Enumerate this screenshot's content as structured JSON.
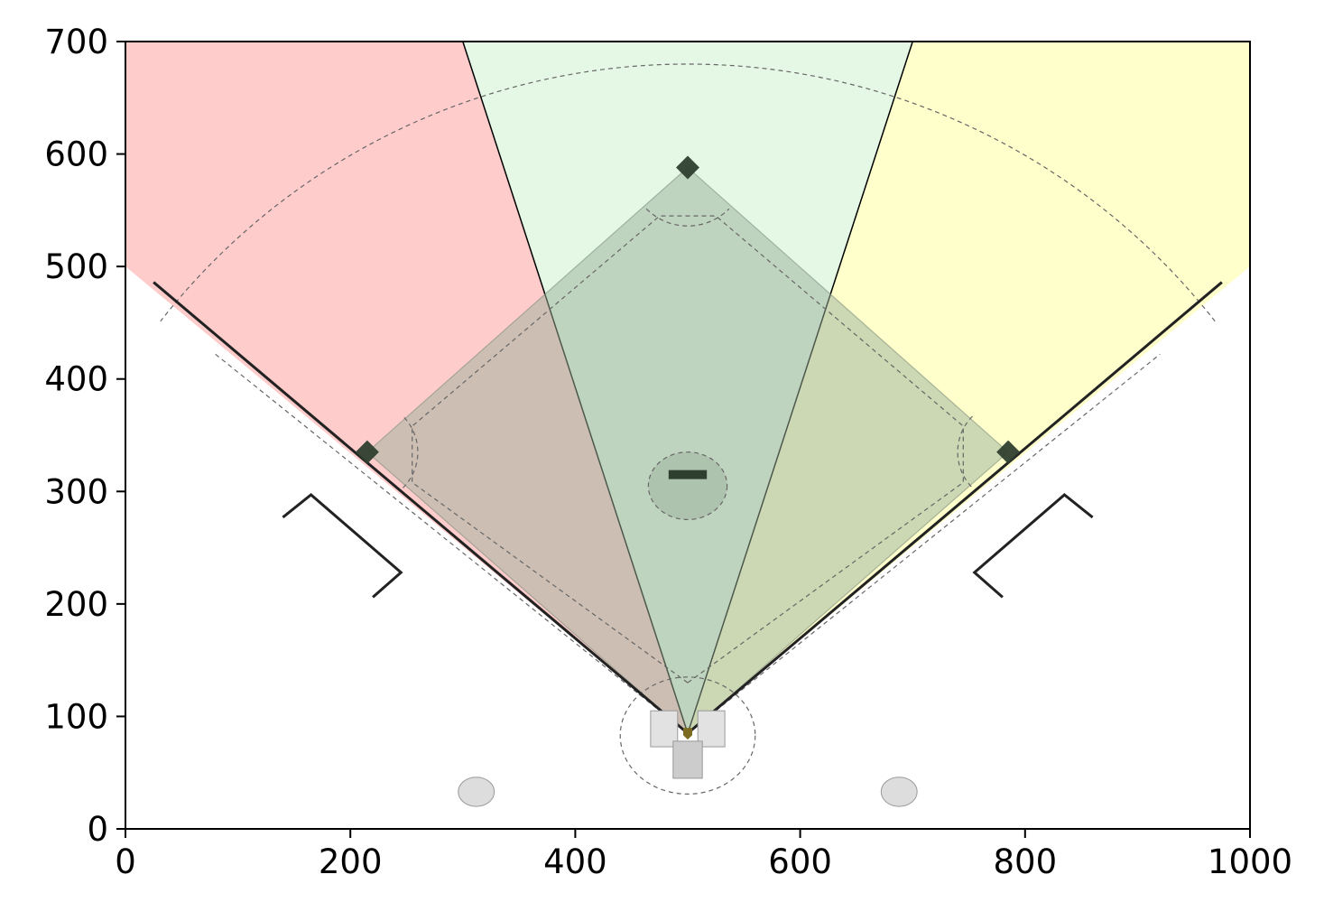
{
  "chart_data": {
    "type": "area",
    "title": "",
    "xlabel": "",
    "ylabel": "",
    "xlim": [
      0,
      1000
    ],
    "ylim": [
      0,
      700
    ],
    "grid": false,
    "x_ticks": [
      {
        "value": 0,
        "label": "0"
      },
      {
        "value": 200,
        "label": "200"
      },
      {
        "value": 400,
        "label": "400"
      },
      {
        "value": 600,
        "label": "600"
      },
      {
        "value": 800,
        "label": "800"
      },
      {
        "value": 1000,
        "label": "1000"
      }
    ],
    "y_ticks": [
      {
        "value": 0,
        "label": "0"
      },
      {
        "value": 100,
        "label": "100"
      },
      {
        "value": 200,
        "label": "200"
      },
      {
        "value": 300,
        "label": "300"
      },
      {
        "value": 400,
        "label": "400"
      },
      {
        "value": 500,
        "label": "500"
      },
      {
        "value": 600,
        "label": "600"
      },
      {
        "value": 700,
        "label": "700"
      }
    ],
    "zones": [
      {
        "id": "left-field-zone",
        "color": "#ff9999",
        "opacity": 0.5,
        "points": [
          [
            500,
            85
          ],
          [
            0,
            500
          ],
          [
            0,
            700
          ],
          [
            300,
            700
          ]
        ]
      },
      {
        "id": "center-field-zone",
        "color": "#ccf2cc",
        "opacity": 0.5,
        "points": [
          [
            500,
            85
          ],
          [
            300,
            700
          ],
          [
            700,
            700
          ]
        ]
      },
      {
        "id": "right-field-zone",
        "color": "#ffff99",
        "opacity": 0.5,
        "points": [
          [
            500,
            85
          ],
          [
            700,
            700
          ],
          [
            1000,
            700
          ],
          [
            1000,
            500
          ]
        ]
      }
    ],
    "field": {
      "home_plate": [
        500,
        85
      ],
      "infield_diamond": {
        "color": "#99b099",
        "opacity": 0.5,
        "points": [
          [
            500,
            85
          ],
          [
            215,
            335
          ],
          [
            500,
            588
          ],
          [
            785,
            335
          ]
        ]
      },
      "infield_grass_line": [
        [
          500,
          130
        ],
        [
          255,
          308
        ],
        [
          255,
          358
        ],
        [
          475,
          545
        ],
        [
          525,
          545
        ],
        [
          745,
          358
        ],
        [
          745,
          308
        ],
        [
          500,
          130
        ]
      ],
      "bases": [
        {
          "name": "third",
          "x": 215,
          "y": 335
        },
        {
          "name": "second",
          "x": 500,
          "y": 588
        },
        {
          "name": "first",
          "x": 785,
          "y": 335
        }
      ],
      "pitchers_mound": {
        "x": 500,
        "y": 305,
        "rx": 35,
        "ry": 30,
        "rubber": [
          [
            483,
            315
          ],
          [
            517,
            315
          ]
        ]
      },
      "home_circle": {
        "x": 500,
        "y": 83,
        "rx": 60,
        "ry": 52
      },
      "foul_lines": [
        [
          [
            500,
            85
          ],
          [
            25,
            486
          ]
        ],
        [
          [
            500,
            85
          ],
          [
            975,
            486
          ]
        ]
      ],
      "outfield_arc": {
        "center": [
          500,
          85
        ],
        "radius": 595,
        "from_deg": 38,
        "to_deg": 142
      },
      "warning_track": [
        [
          80,
          422
        ],
        [
          500,
          85
        ],
        [
          920,
          422
        ]
      ],
      "dugouts": [
        {
          "name": "third-base-dugout",
          "points": [
            [
              140,
              277
            ],
            [
              165,
              297
            ],
            [
              245,
              228
            ],
            [
              220,
              206
            ]
          ]
        },
        {
          "name": "first-base-dugout",
          "points": [
            [
              860,
              277
            ],
            [
              835,
              297
            ],
            [
              755,
              228
            ],
            [
              780,
              206
            ]
          ]
        }
      ],
      "batter_boxes": [
        {
          "x": 467,
          "y": 73,
          "w": 24,
          "h": 32
        },
        {
          "x": 509,
          "y": 73,
          "w": 24,
          "h": 32
        }
      ],
      "catcher_box": {
        "x": 487,
        "y": 45,
        "w": 26,
        "h": 33
      },
      "on_deck_circles": [
        {
          "x": 312,
          "y": 33,
          "rx": 16,
          "ry": 13
        },
        {
          "x": 688,
          "y": 33,
          "rx": 16,
          "ry": 13
        }
      ]
    },
    "colors": {
      "frame": "#000000",
      "zone_edge": "#000000",
      "field_line": "#222222",
      "dashed_line": "#666666",
      "base": "#2f3f2f",
      "neutral_fill": "#cccccc"
    }
  }
}
